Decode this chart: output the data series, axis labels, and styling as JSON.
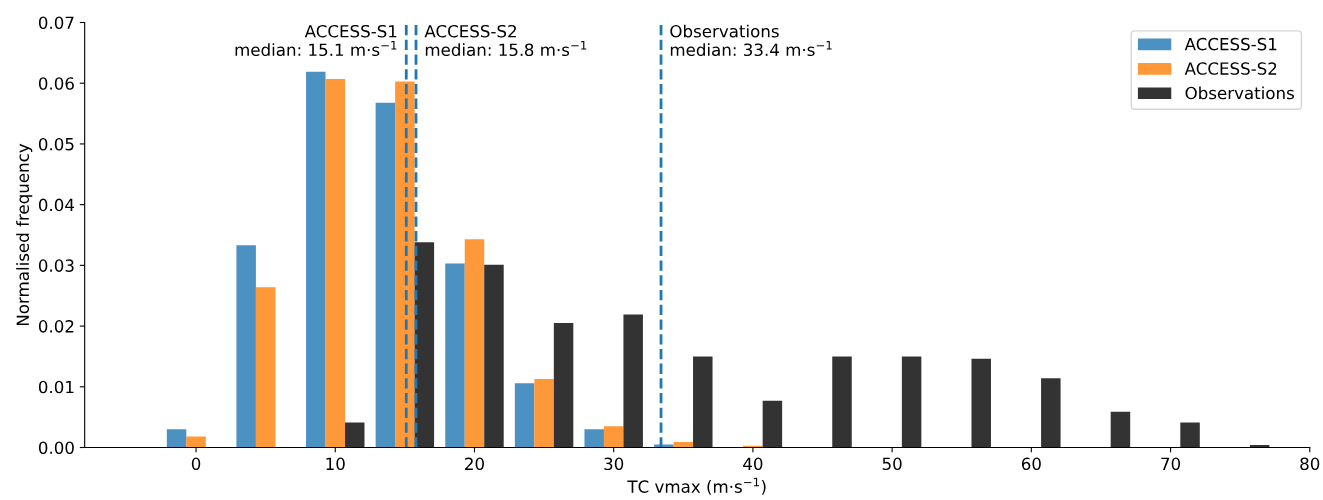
{
  "chart_data": {
    "type": "bar",
    "xlabel": "TC vmax (m·s$^{−1}$)",
    "ylabel": "Normalised frequency",
    "x": [
      0,
      5,
      10,
      15,
      20,
      25,
      30,
      35,
      40,
      45,
      50,
      55,
      60,
      65,
      70,
      75
    ],
    "series": [
      {
        "name": "ACCESS-S1",
        "color": "#4b92c3",
        "values": [
          0.003,
          0.0333,
          0.0619,
          0.0568,
          0.0303,
          0.0106,
          0.003,
          0.0005,
          null,
          null,
          null,
          null,
          null,
          null,
          null,
          null
        ]
      },
      {
        "name": "ACCESS-S2",
        "color": "#ff9839",
        "values": [
          0.0018,
          0.0264,
          0.0607,
          0.0603,
          0.0343,
          0.0113,
          0.0035,
          0.0009,
          0.0003,
          null,
          null,
          null,
          null,
          null,
          null,
          null
        ]
      },
      {
        "name": "Observations",
        "color": "#333333",
        "values": [
          null,
          null,
          0.0041,
          0.0338,
          0.0301,
          0.0205,
          0.0219,
          0.015,
          0.0077,
          0.015,
          0.015,
          0.0146,
          0.0114,
          0.0059,
          0.0041,
          0.0004
        ]
      }
    ],
    "ref_lines": [
      {
        "axis": "x",
        "value": 15.1,
        "label": "ACCESS-S1\nmedian: 15.1 m·s$^{−1}$",
        "color": "#1f77b4",
        "line_style": "dashed"
      },
      {
        "axis": "x",
        "value": 15.8,
        "label": "ACCESS-S2\nmedian: 15.8 m·s$^{−1}$",
        "color": "#1f77b4",
        "line_style": "dashed"
      },
      {
        "axis": "x",
        "value": 33.4,
        "label": "Observations\nmedian: 33.4 m·s$^{−1}$",
        "color": "#1f77b4",
        "line_style": "dashed"
      }
    ],
    "xlim": [
      -8,
      80
    ],
    "xticks": [
      0,
      10,
      20,
      30,
      40,
      50,
      60,
      70,
      80
    ],
    "ylim": [
      0,
      0.07
    ],
    "yticks": [
      {
        "value": 0,
        "label": "0.00"
      },
      {
        "value": 0.01,
        "label": "0.01"
      },
      {
        "value": 0.02,
        "label": "0.02"
      },
      {
        "value": 0.03,
        "label": "0.03"
      },
      {
        "value": 0.04,
        "label": "0.04"
      },
      {
        "value": 0.05,
        "label": "0.05"
      },
      {
        "value": 0.06,
        "label": "0.06"
      },
      {
        "value": 0.07,
        "label": "0.07"
      }
    ],
    "grid": false,
    "legend": "top right"
  }
}
